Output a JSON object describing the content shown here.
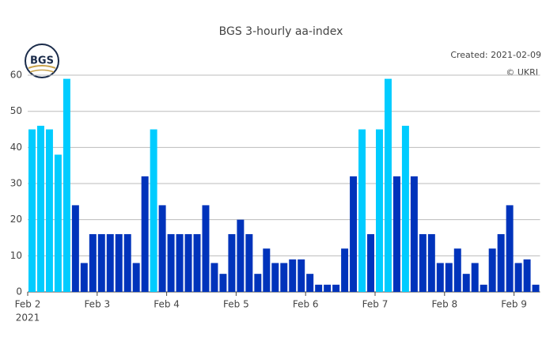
{
  "chart_data": {
    "type": "bar",
    "title": "BGS 3-hourly aa-index",
    "logo_text": "BGS",
    "annotations": [
      "Created: 2021-02-09",
      "© UKRI"
    ],
    "values": [
      45,
      46,
      45,
      38,
      59,
      24,
      8,
      16,
      16,
      16,
      16,
      16,
      8,
      32,
      45,
      24,
      16,
      16,
      16,
      16,
      24,
      8,
      5,
      16,
      20,
      16,
      5,
      12,
      8,
      8,
      9,
      9,
      5,
      2,
      2,
      2,
      12,
      32,
      45,
      16,
      45,
      59,
      32,
      46,
      32,
      16,
      16,
      8,
      8,
      12,
      5,
      8,
      2,
      12,
      16,
      24,
      8,
      9,
      2
    ],
    "colors": [
      "#00ccff",
      "#00ccff",
      "#00ccff",
      "#00ccff",
      "#00ccff",
      "#0033bb",
      "#0033bb",
      "#0033bb",
      "#0033bb",
      "#0033bb",
      "#0033bb",
      "#0033bb",
      "#0033bb",
      "#0033bb",
      "#00ccff",
      "#0033bb",
      "#0033bb",
      "#0033bb",
      "#0033bb",
      "#0033bb",
      "#0033bb",
      "#0033bb",
      "#0033bb",
      "#0033bb",
      "#0033bb",
      "#0033bb",
      "#0033bb",
      "#0033bb",
      "#0033bb",
      "#0033bb",
      "#0033bb",
      "#0033bb",
      "#0033bb",
      "#0033bb",
      "#0033bb",
      "#0033bb",
      "#0033bb",
      "#0033bb",
      "#00ccff",
      "#0033bb",
      "#00ccff",
      "#00ccff",
      "#0033bb",
      "#00ccff",
      "#0033bb",
      "#0033bb",
      "#0033bb",
      "#0033bb",
      "#0033bb",
      "#0033bb",
      "#0033bb",
      "#0033bb",
      "#0033bb",
      "#0033bb",
      "#0033bb",
      "#0033bb",
      "#0033bb",
      "#0033bb",
      "#0033bb"
    ],
    "xticks": [
      {
        "value": 0,
        "label": "Feb 2"
      },
      {
        "value": 1,
        "label": "Feb 3"
      },
      {
        "value": 2,
        "label": "Feb 4"
      },
      {
        "value": 3,
        "label": "Feb 5"
      },
      {
        "value": 4,
        "label": "Feb 6"
      },
      {
        "value": 5,
        "label": "Feb 7"
      },
      {
        "value": 6,
        "label": "Feb 8"
      },
      {
        "value": 7,
        "label": "Feb 9"
      }
    ],
    "x_year_label": "2021",
    "ylim": [
      0,
      62.2
    ],
    "yticks": [
      0,
      10,
      20,
      30,
      40,
      50,
      60
    ],
    "grid": true
  }
}
